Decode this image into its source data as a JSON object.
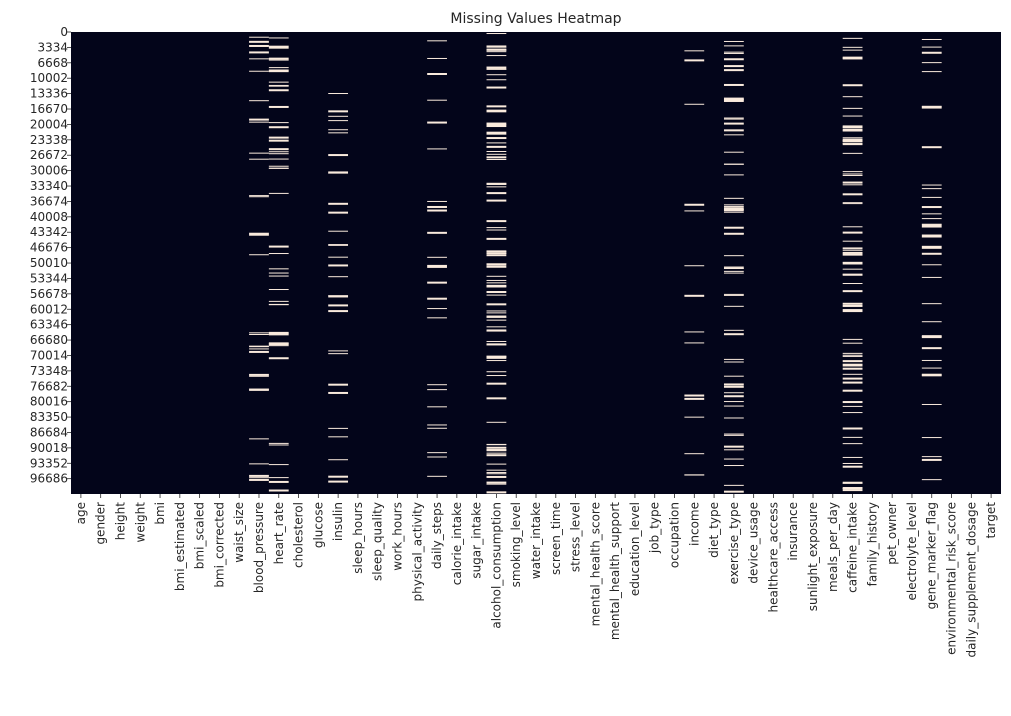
{
  "chart_data": {
    "type": "heatmap",
    "title": "Missing Values Heatmap",
    "xlabel": "",
    "ylabel": "",
    "colors": {
      "present": "#03051a",
      "missing": "#faebdd"
    },
    "columns": [
      "age",
      "gender",
      "height",
      "weight",
      "bmi",
      "bmi_estimated",
      "bmi_scaled",
      "bmi_corrected",
      "waist_size",
      "blood_pressure",
      "heart_rate",
      "cholesterol",
      "glucose",
      "insulin",
      "sleep_hours",
      "sleep_quality",
      "work_hours",
      "physical_activity",
      "daily_steps",
      "calorie_intake",
      "sugar_intake",
      "alcohol_consumption",
      "smoking_level",
      "water_intake",
      "screen_time",
      "stress_level",
      "mental_health_score",
      "mental_health_support",
      "education_level",
      "job_type",
      "occupation",
      "income",
      "diet_type",
      "exercise_type",
      "device_usage",
      "healthcare_access",
      "insurance",
      "sunlight_exposure",
      "meals_per_day",
      "caffeine_intake",
      "family_history",
      "pet_owner",
      "electrolyte_level",
      "gene_marker_flag",
      "environmental_risk_score",
      "daily_supplement_dosage",
      "target"
    ],
    "row_ticks": [
      "0",
      "3334",
      "6668",
      "10002",
      "13336",
      "16670",
      "20004",
      "23338",
      "26672",
      "30006",
      "33340",
      "36674",
      "40008",
      "43342",
      "46676",
      "50010",
      "53344",
      "56678",
      "60012",
      "63346",
      "66680",
      "70014",
      "73348",
      "76682",
      "80016",
      "83350",
      "86684",
      "90018",
      "93352",
      "96686"
    ],
    "row_tick_values": [
      0,
      3334,
      6668,
      10002,
      13336,
      16670,
      20004,
      23338,
      26672,
      30006,
      33340,
      36674,
      40008,
      43342,
      46676,
      50010,
      53344,
      56678,
      60012,
      63346,
      66680,
      70014,
      73348,
      76682,
      80016,
      83350,
      86684,
      90018,
      93352,
      96686
    ],
    "n_rows": 100000,
    "missing_rate": {
      "blood_pressure": 0.1,
      "heart_rate": 0.15,
      "insulin": 0.1,
      "daily_steps": 0.08,
      "alcohol_consumption": 0.3,
      "income": 0.05,
      "exercise_type": 0.2,
      "caffeine_intake": 0.25,
      "gene_marker_flag": 0.12
    }
  }
}
